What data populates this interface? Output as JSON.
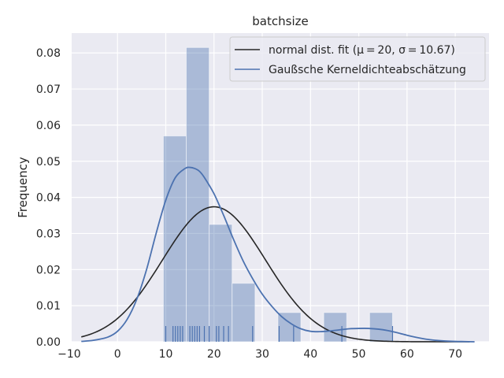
{
  "chart_data": {
    "type": "bar",
    "title": "batchsize",
    "xlabel": "",
    "ylabel": "Frequency",
    "xlim": [
      -9.5,
      77
    ],
    "ylim": [
      0,
      0.0855
    ],
    "xticks": [
      -10,
      0,
      10,
      20,
      30,
      40,
      50,
      60,
      70
    ],
    "xtick_labels": [
      "−10",
      "0",
      "10",
      "20",
      "30",
      "40",
      "50",
      "60",
      "70"
    ],
    "yticks": [
      0,
      0.01,
      0.02,
      0.03,
      0.04,
      0.05,
      0.06,
      0.07,
      0.08
    ],
    "ytick_labels": [
      "0.00",
      "0.01",
      "0.02",
      "0.03",
      "0.04",
      "0.05",
      "0.06",
      "0.07",
      "0.08"
    ],
    "grid": true,
    "legend_placement": "top-right",
    "histogram": {
      "bins": [
        {
          "x0": 9.5,
          "x1": 14.25,
          "value": 0.057
        },
        {
          "x0": 14.25,
          "x1": 19.0,
          "value": 0.0815
        },
        {
          "x0": 19.0,
          "x1": 23.75,
          "value": 0.0325
        },
        {
          "x0": 23.75,
          "x1": 28.5,
          "value": 0.0162
        },
        {
          "x0": 28.5,
          "x1": 33.25,
          "value": 0.0
        },
        {
          "x0": 33.25,
          "x1": 38.0,
          "value": 0.0081
        },
        {
          "x0": 38.0,
          "x1": 42.75,
          "value": 0.0
        },
        {
          "x0": 42.75,
          "x1": 47.5,
          "value": 0.0081
        },
        {
          "x0": 47.5,
          "x1": 52.25,
          "value": 0.0
        },
        {
          "x0": 52.25,
          "x1": 57.0,
          "value": 0.0081
        }
      ],
      "color": "#4c72b0"
    },
    "rug": [
      10,
      11.5,
      12,
      12.5,
      13,
      13.5,
      15,
      15.5,
      16,
      16.5,
      17,
      18,
      19,
      20.5,
      21,
      22,
      23,
      28,
      33.5,
      36.5,
      46.5,
      57
    ],
    "series": [
      {
        "name": "normal dist. fit ($\\mu=20$, $\\sigma=10.67$)",
        "legend_text": "normal dist. fit (μ = 20, σ = 10.67)",
        "kind": "normal",
        "mu": 20,
        "sigma": 10.67,
        "x_range": [
          -7.5,
          73
        ],
        "color": "#262626"
      },
      {
        "name": "Gaußsche Kerneldichteabschätzung",
        "legend_text": "Gaußsche Kerneldichteabschätzung",
        "kind": "kde",
        "x": [
          -7.5,
          -5,
          -2,
          0,
          2,
          4,
          6,
          8,
          10,
          12,
          14,
          15,
          16,
          17,
          18,
          20,
          22,
          24,
          26,
          28,
          30,
          32,
          34,
          36,
          38,
          40,
          42,
          44,
          46,
          48,
          50,
          52,
          54,
          56,
          58,
          60,
          62,
          64,
          66,
          68,
          70,
          72,
          74
        ],
        "y": [
          0.0001,
          0.0004,
          0.0013,
          0.0029,
          0.0062,
          0.0118,
          0.0199,
          0.03,
          0.0392,
          0.0455,
          0.048,
          0.0483,
          0.048,
          0.0472,
          0.0455,
          0.041,
          0.035,
          0.0285,
          0.0225,
          0.0175,
          0.0132,
          0.0098,
          0.007,
          0.005,
          0.0036,
          0.0029,
          0.0028,
          0.003,
          0.0033,
          0.0036,
          0.0037,
          0.0037,
          0.0035,
          0.0031,
          0.0025,
          0.0018,
          0.0012,
          0.0007,
          0.0004,
          0.0002,
          0.0001,
          5e-05,
          0.0
        ],
        "color": "#4c72b0"
      }
    ]
  },
  "colors": {
    "plot_background": "#eaeaf2",
    "grid": "#ffffff",
    "text": "#262626"
  }
}
